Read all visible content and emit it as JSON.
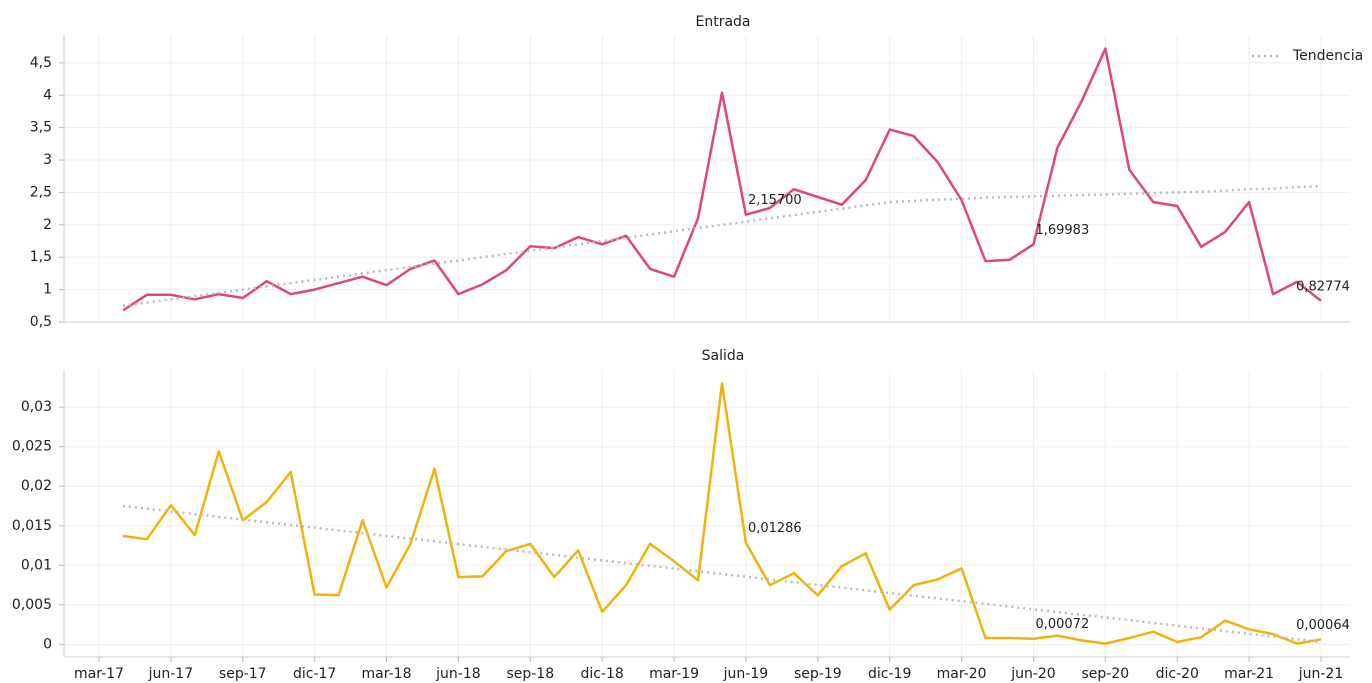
{
  "chart_data": [
    {
      "type": "line",
      "title": "Entrada",
      "legend": "upper right",
      "grid": true,
      "ylim": [
        0.5,
        4.93
      ],
      "yticks": [
        {
          "value": 0.5,
          "label": "0,5"
        },
        1,
        {
          "value": 1.5,
          "label": "1,5"
        },
        2,
        {
          "value": 2.5,
          "label": "2,5"
        },
        3,
        {
          "value": 3.5,
          "label": "3,5"
        },
        4,
        {
          "value": 4.5,
          "label": "4,5"
        }
      ],
      "series": [
        {
          "color": "#e0457b",
          "values": [
            null,
            0.68,
            0.92,
            0.92,
            0.85,
            0.93,
            0.87,
            1.13,
            0.93,
            1.0,
            1.1,
            1.2,
            1.07,
            1.32,
            1.45,
            0.93,
            1.08,
            1.3,
            1.67,
            1.64,
            1.81,
            1.7,
            1.83,
            1.32,
            1.2,
            2.1,
            4.04,
            2.157,
            2.26,
            2.55,
            2.43,
            2.31,
            2.69,
            3.47,
            3.37,
            2.97,
            2.38,
            1.44,
            1.46,
            1.69983,
            3.19,
            3.9,
            4.72,
            2.85,
            2.35,
            2.29,
            1.66,
            1.89,
            2.35,
            0.93,
            1.12,
            0.82774
          ],
          "value_labels": [
            null,
            null,
            null,
            null,
            null,
            null,
            null,
            null,
            null,
            null,
            null,
            null,
            null,
            null,
            null,
            null,
            null,
            null,
            null,
            null,
            null,
            null,
            null,
            null,
            null,
            null,
            null,
            "2,15700",
            null,
            null,
            null,
            null,
            null,
            null,
            null,
            null,
            null,
            null,
            null,
            "1,69983",
            null,
            null,
            null,
            null,
            null,
            null,
            null,
            null,
            null,
            null,
            null,
            "0,82774"
          ]
        },
        {
          "name": "Tendencia",
          "color": "#bbbbbb",
          "dashed": true,
          "values": [
            null,
            0.75,
            0.8,
            0.85,
            0.9,
            0.95,
            1.0,
            1.05,
            1.1,
            1.15,
            1.2,
            1.25,
            1.3,
            1.35,
            1.4,
            1.45,
            1.5,
            1.55,
            1.6,
            1.65,
            1.7,
            1.75,
            1.8,
            1.85,
            1.9,
            1.95,
            2.0,
            2.05,
            2.1,
            2.15,
            2.2,
            2.25,
            2.3,
            2.35,
            2.37,
            2.39,
            2.4,
            2.42,
            2.43,
            2.44,
            2.45,
            2.46,
            2.47,
            2.48,
            2.49,
            2.5,
            2.51,
            2.53,
            2.55,
            2.56,
            2.58,
            2.6
          ]
        }
      ]
    },
    {
      "type": "line",
      "title": "Salida",
      "grid": true,
      "categories": [
        "mar-17",
        null,
        null,
        "jun-17",
        null,
        null,
        "sep-17",
        null,
        null,
        "dic-17",
        null,
        null,
        "mar-18",
        null,
        null,
        "jun-18",
        null,
        null,
        "sep-18",
        null,
        null,
        "dic-18",
        null,
        null,
        "mar-19",
        null,
        null,
        "jun-19",
        null,
        null,
        "sep-19",
        null,
        null,
        "dic-19",
        null,
        null,
        "mar-20",
        null,
        null,
        "jun-20",
        null,
        null,
        "sep-20",
        null,
        null,
        "dic-20",
        null,
        null,
        "mar-21",
        null,
        null,
        "jun-21"
      ],
      "ylim": [
        -0.0016,
        0.0347
      ],
      "yticks": [
        0,
        {
          "value": 0.005,
          "label": "0,005"
        },
        {
          "value": 0.01,
          "label": "0,01"
        },
        {
          "value": 0.015,
          "label": "0,015"
        },
        {
          "value": 0.02,
          "label": "0,02"
        },
        {
          "value": 0.025,
          "label": "0,025"
        },
        {
          "value": 0.03,
          "label": "0,03"
        }
      ],
      "series": [
        {
          "color": "#efb30c",
          "values": [
            null,
            0.0137,
            0.0133,
            0.0176,
            0.0138,
            0.0244,
            0.0157,
            0.018,
            0.0218,
            0.0063,
            0.0062,
            0.0157,
            0.0072,
            0.0127,
            0.0222,
            0.0085,
            0.0086,
            0.0118,
            0.0127,
            0.0085,
            0.0119,
            0.0041,
            0.0075,
            0.0127,
            0.0105,
            0.0081,
            0.033,
            0.01286,
            0.0075,
            0.009,
            0.0062,
            0.0099,
            0.0115,
            0.0044,
            0.0075,
            0.0082,
            0.0096,
            0.0008,
            0.0008,
            0.00072,
            0.0011,
            0.0005,
            0.0001,
            0.0008,
            0.0016,
            0.0003,
            0.0009,
            0.003,
            0.0019,
            0.0013,
            0.0001,
            0.00064
          ],
          "value_labels": [
            null,
            null,
            null,
            null,
            null,
            null,
            null,
            null,
            null,
            null,
            null,
            null,
            null,
            null,
            null,
            null,
            null,
            null,
            null,
            null,
            null,
            null,
            null,
            null,
            null,
            null,
            null,
            "0,01286",
            null,
            null,
            null,
            null,
            null,
            null,
            null,
            null,
            null,
            null,
            null,
            "0,00072",
            null,
            null,
            null,
            null,
            null,
            null,
            null,
            null,
            null,
            null,
            null,
            "0,00064"
          ]
        },
        {
          "color": "#bbbbbb",
          "dashed": true,
          "values": [
            null,
            0.0175,
            0.01716,
            0.01681,
            0.01647,
            0.01612,
            0.01578,
            0.01544,
            0.01509,
            0.01475,
            0.0144,
            0.01406,
            0.01372,
            0.01337,
            0.01303,
            0.01268,
            0.01234,
            0.012,
            0.01165,
            0.01131,
            0.01096,
            0.01062,
            0.01028,
            0.00993,
            0.00959,
            0.00924,
            0.0089,
            0.00856,
            0.00821,
            0.00787,
            0.00752,
            0.00718,
            0.00684,
            0.00649,
            0.00615,
            0.0058,
            0.00546,
            0.00512,
            0.00477,
            0.00443,
            0.00408,
            0.00374,
            0.0034,
            0.00305,
            0.00271,
            0.00236,
            0.00202,
            0.00168,
            0.00133,
            0.00099,
            0.00064,
            0.0003
          ]
        }
      ]
    }
  ]
}
